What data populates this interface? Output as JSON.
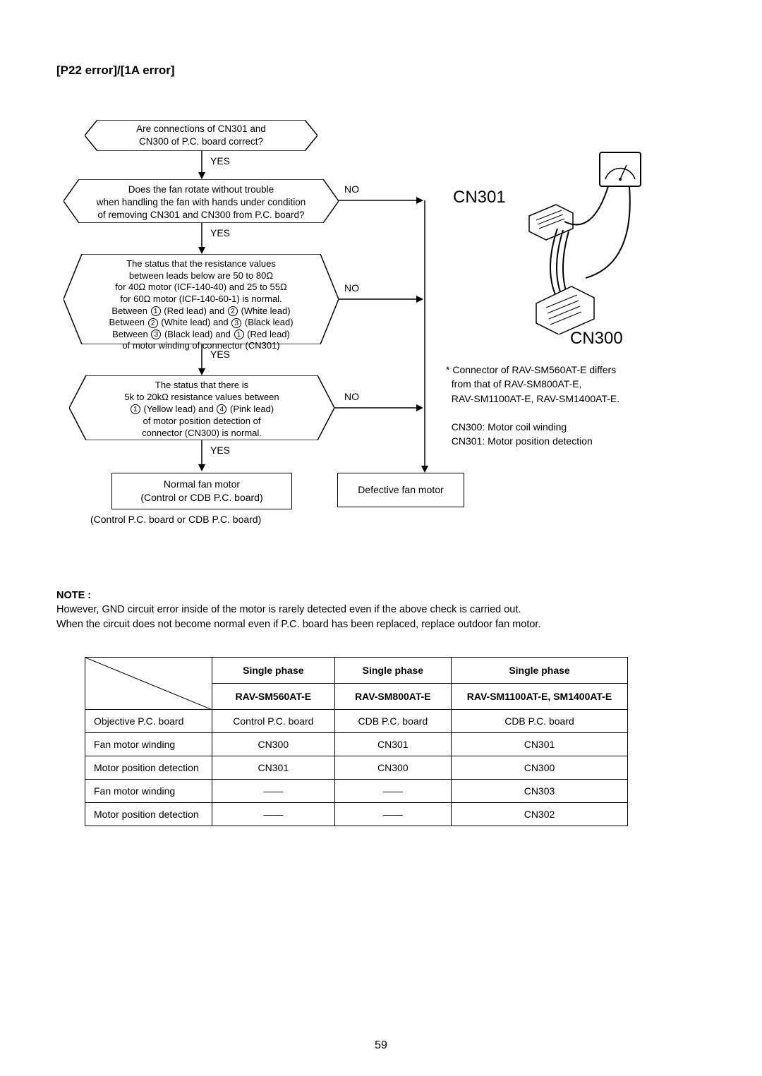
{
  "title": "[P22 error]/[1A error]",
  "flow": {
    "n1": "Are connections of CN301 and\nCN300 of P.C. board correct?",
    "n2": "Does the fan rotate without trouble\nwhen handling the fan with hands under condition\nof removing CN301 and CN300 from P.C. board?",
    "n3a": "The status that the resistance values",
    "n3b": "between leads below are 50 to 80Ω",
    "n3c": "for 40Ω motor (ICF-140-40) and 25 to 55Ω",
    "n3d": "for 60Ω motor (ICF-140-60-1) is normal.",
    "n3e": "Between",
    "n3f": "(Red lead) and",
    "n3g": "(White lead)",
    "n3h": "(White lead) and",
    "n3i": "(Black lead)",
    "n3j": "(Black lead) and",
    "n3k": "(Red lead)",
    "n3l": "of motor winding of connector (CN301)",
    "n4a": "The status that there is",
    "n4b": "5k to 20kΩ resistance values between",
    "n4c": "(Yellow lead) and",
    "n4d": "(Pink lead)",
    "n4e": "of motor position detection of",
    "n4f": "connector (CN300) is normal.",
    "r1": "Normal fan motor\n(Control or CDB P.C. board)",
    "r2": "Defective fan motor",
    "caption": "(Control P.C. board or CDB P.C. board)",
    "yes": "YES",
    "no": "NO"
  },
  "side": {
    "cn301": "CN301",
    "cn300": "CN300",
    "note1": "* Connector of RAV-SM560AT-E differs",
    "note2": "from that of RAV-SM800AT-E,",
    "note3": "RAV-SM1100AT-E, RAV-SM1400AT-E.",
    "note4": "CN300: Motor coil winding",
    "note5": "CN301: Motor position detection"
  },
  "note": {
    "head": "NOTE :",
    "l1": "However, GND circuit error inside of the motor is rarely detected even if the above check is carried out.",
    "l2": "When the circuit does not become normal even if P.C. board has been replaced, replace outdoor fan motor."
  },
  "table": {
    "h1": "Single phase",
    "h2": "Single phase",
    "h3": "Single phase",
    "s1": "RAV-SM560AT-E",
    "s2": "RAV-SM800AT-E",
    "s3": "RAV-SM1100AT-E, SM1400AT-E",
    "rows": [
      [
        "Objective P.C. board",
        "Control P.C. board",
        "CDB P.C. board",
        "CDB P.C. board"
      ],
      [
        "Fan motor winding",
        "CN300",
        "CN301",
        "CN301"
      ],
      [
        "Motor position detection",
        "CN301",
        "CN300",
        "CN300"
      ],
      [
        "Fan motor winding",
        "——",
        "——",
        "CN303"
      ],
      [
        "Motor position detection",
        "——",
        "——",
        "CN302"
      ]
    ]
  },
  "page": "59",
  "colors": {
    "line": "#000000",
    "bg": "#ffffff"
  }
}
